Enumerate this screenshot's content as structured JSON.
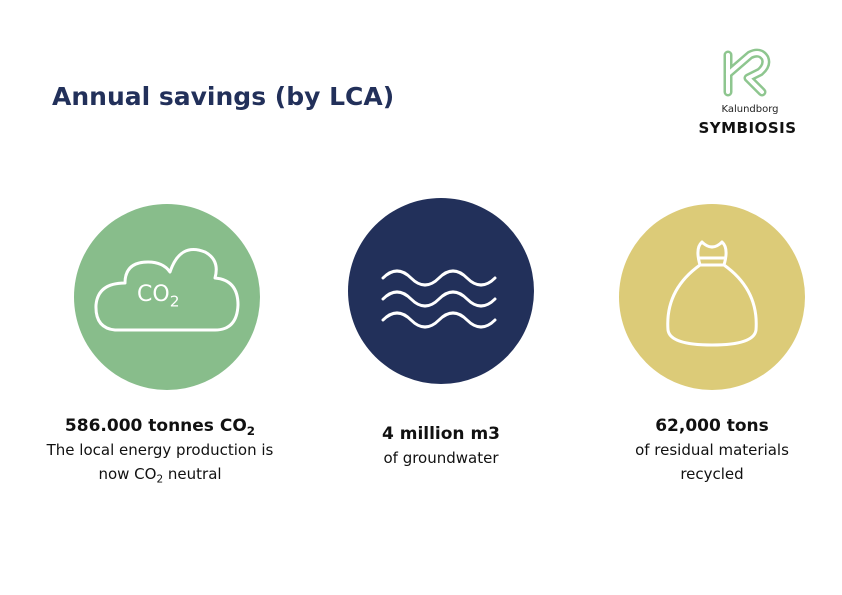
{
  "header": {
    "title": "Annual savings (by LCA)"
  },
  "logo": {
    "small": "Kalundborg",
    "name": "SYMBIOSIS"
  },
  "items": [
    {
      "icon_text": [
        "CO",
        "2"
      ],
      "headline": [
        "586.000 tonnes CO",
        "2"
      ],
      "description": [
        [
          "The local energy production is"
        ],
        [
          "now CO",
          "2",
          " neutral"
        ]
      ]
    },
    {
      "headline": [
        "4 million m3"
      ],
      "description": [
        [
          "of groundwater"
        ]
      ]
    },
    {
      "headline": [
        "62,000 tons"
      ],
      "description": [
        [
          "of residual materials"
        ],
        [
          "recycled"
        ]
      ]
    }
  ]
}
